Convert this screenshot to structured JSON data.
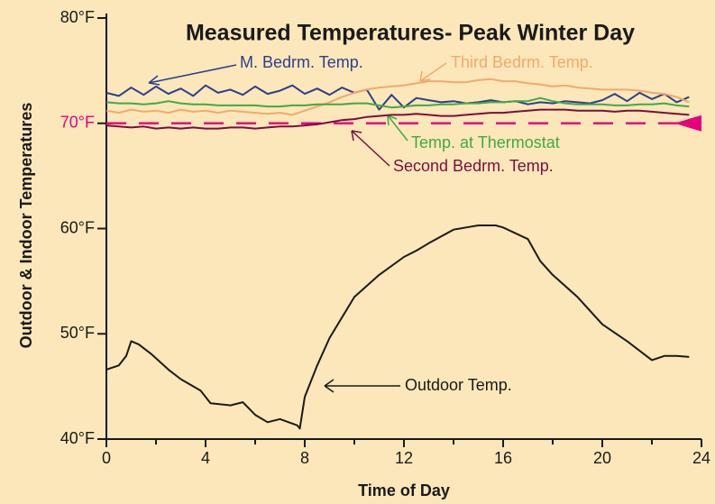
{
  "chart_data": {
    "type": "line",
    "title": "Measured Temperatures- Peak Winter Day",
    "xlabel": "Time of Day",
    "ylabel": "Outdoor & Indoor Temperatures",
    "xlim": [
      0,
      24
    ],
    "xticks": [
      0,
      4,
      8,
      12,
      16,
      20,
      24
    ],
    "xminor_ticks": [
      2,
      6,
      10,
      14,
      18,
      22
    ],
    "ylim": [
      40,
      80
    ],
    "yticks": [
      {
        "value": 40,
        "label": "40°F"
      },
      {
        "value": 50,
        "label": "50°F"
      },
      {
        "value": 60,
        "label": "60°F"
      },
      {
        "value": 70,
        "label": "70°F"
      },
      {
        "value": 80,
        "label": "80°F"
      }
    ],
    "reference_line": {
      "value": 70,
      "color": "#e6007e"
    },
    "x": [
      0,
      0.5,
      1,
      1.5,
      2,
      2.5,
      3,
      3.5,
      4,
      4.5,
      5,
      5.5,
      6,
      6.5,
      7,
      7.5,
      8,
      8.5,
      9,
      9.5,
      10,
      10.5,
      11,
      11.5,
      12,
      12.5,
      13,
      13.5,
      14,
      14.5,
      15,
      15.5,
      16,
      16.5,
      17,
      17.5,
      18,
      18.5,
      19,
      19.5,
      20,
      20.5,
      21,
      21.5,
      22,
      22.5,
      23,
      23.5
    ],
    "series": [
      {
        "name": "M. Bedrm. Temp.",
        "color": "#2b3f8f",
        "values": [
          72.9,
          72.6,
          73.4,
          72.7,
          73.5,
          72.8,
          73.3,
          72.6,
          73.6,
          72.9,
          73.2,
          72.7,
          73.5,
          72.8,
          73.1,
          73.6,
          72.8,
          73.3,
          72.7,
          73.4,
          72.9,
          73.2,
          71.3,
          72.7,
          71.5,
          72.4,
          72.2,
          72.0,
          72.1,
          71.9,
          72.0,
          72.2,
          72.0,
          72.1,
          71.8,
          72.0,
          71.9,
          72.1,
          72.0,
          71.9,
          72.2,
          72.8,
          72.1,
          72.9,
          72.3,
          72.8,
          72.0,
          72.5
        ]
      },
      {
        "name": "Third Bedrm. Temp.",
        "color": "#f3a86e",
        "values": [
          71.2,
          71.0,
          71.3,
          71.1,
          71.2,
          71.0,
          71.3,
          71.1,
          71.2,
          71.0,
          71.2,
          71.1,
          71.0,
          70.9,
          71.0,
          70.8,
          71.2,
          71.6,
          72.0,
          72.5,
          72.9,
          73.2,
          73.4,
          73.5,
          73.6,
          73.8,
          74.0,
          74.0,
          73.9,
          73.9,
          74.1,
          74.2,
          74.0,
          74.0,
          73.8,
          73.7,
          73.5,
          73.6,
          73.4,
          73.3,
          73.2,
          73.2,
          73.2,
          73.1,
          72.9,
          72.8,
          72.5,
          72.0
        ]
      },
      {
        "name": "Temp. at Thermostat",
        "color": "#43a845",
        "values": [
          72.0,
          71.9,
          71.9,
          71.8,
          71.9,
          72.1,
          71.9,
          71.8,
          71.8,
          71.7,
          71.7,
          71.7,
          71.7,
          71.6,
          71.6,
          71.7,
          71.7,
          71.8,
          71.8,
          71.8,
          71.9,
          71.9,
          71.7,
          71.5,
          71.6,
          71.7,
          71.7,
          71.8,
          71.8,
          71.9,
          71.9,
          72.0,
          72.0,
          72.1,
          72.1,
          72.4,
          72.1,
          71.9,
          71.8,
          71.8,
          71.8,
          71.7,
          71.7,
          71.8,
          71.8,
          71.9,
          71.7,
          71.6
        ]
      },
      {
        "name": "Second Bedrm. Temp.",
        "color": "#7a0e3e",
        "values": [
          69.8,
          69.7,
          69.6,
          69.7,
          69.5,
          69.6,
          69.5,
          69.6,
          69.5,
          69.5,
          69.6,
          69.6,
          69.5,
          69.6,
          69.7,
          69.7,
          69.8,
          69.9,
          70.1,
          70.3,
          70.4,
          70.6,
          70.7,
          70.8,
          70.8,
          70.9,
          70.8,
          70.7,
          70.7,
          70.8,
          70.9,
          71.0,
          71.0,
          71.1,
          71.2,
          71.3,
          71.3,
          71.3,
          71.2,
          71.2,
          71.2,
          71.1,
          71.2,
          71.2,
          71.1,
          71.0,
          70.9,
          70.8
        ]
      },
      {
        "name": "Outdoor Temp.",
        "color": "#1a1a1a",
        "x": [
          0,
          0.5,
          0.8,
          1,
          1.3,
          1.8,
          2.5,
          3,
          3.8,
          4.2,
          5,
          5.5,
          6,
          6.5,
          7,
          7.7,
          7.8,
          8,
          8.5,
          9,
          10,
          11,
          12,
          12.5,
          13,
          14,
          14.5,
          15,
          15.7,
          16,
          17,
          17.5,
          18,
          19,
          20,
          21,
          22,
          22.5,
          23,
          23.5
        ],
        "values": [
          46.6,
          47.0,
          47.9,
          49.3,
          49.0,
          48.1,
          46.6,
          45.7,
          44.6,
          43.4,
          43.2,
          43.5,
          42.3,
          41.6,
          41.9,
          41.3,
          41.0,
          44.0,
          47.0,
          49.6,
          53.5,
          55.6,
          57.3,
          57.9,
          58.6,
          59.9,
          60.1,
          60.3,
          60.3,
          60.1,
          59.0,
          56.9,
          55.6,
          53.5,
          50.9,
          49.3,
          47.5,
          47.9,
          47.9,
          47.8
        ]
      }
    ]
  }
}
